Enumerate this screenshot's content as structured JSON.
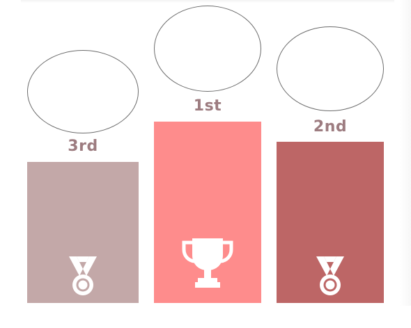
{
  "podium": [
    {
      "id": "third",
      "rank_label": "3rd",
      "color": "#c3a8a8",
      "icon": "medal-icon"
    },
    {
      "id": "first",
      "rank_label": "1st",
      "color": "#fe8c8c",
      "icon": "trophy-icon"
    },
    {
      "id": "second",
      "rank_label": "2nd",
      "color": "#bd6666",
      "icon": "medal-icon"
    }
  ]
}
